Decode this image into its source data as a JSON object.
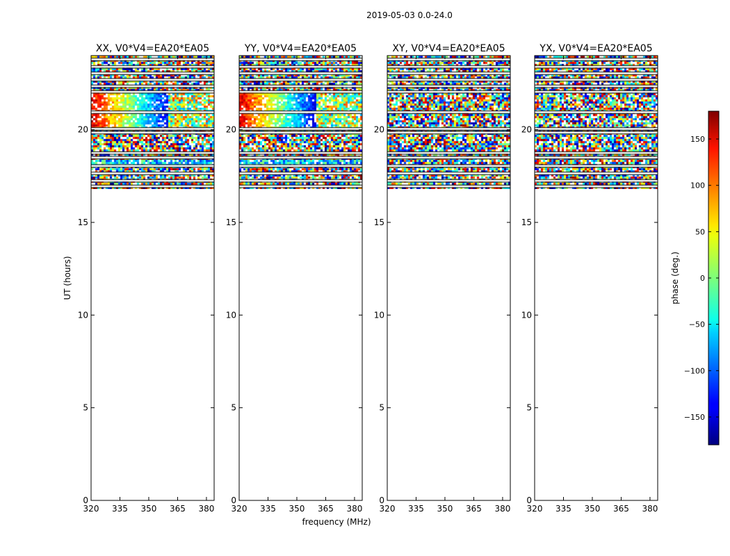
{
  "figure": {
    "suptitle": "2019-05-03 0.0-24.0",
    "xlabel": "frequency (MHz)",
    "ylabel": "UT (hours)",
    "colorbar_label": "phase (deg.)"
  },
  "chart_data": {
    "type": "heatmap",
    "suptitle": "2019-05-03 0.0-24.0",
    "xlabel": "frequency (MHz)",
    "ylabel": "UT (hours)",
    "xlim": [
      320,
      384
    ],
    "ylim": [
      0,
      24
    ],
    "xticks": [
      320,
      335,
      350,
      365,
      380
    ],
    "yticks": [
      0,
      5,
      10,
      15,
      20
    ],
    "data_ut_range": [
      16.8,
      24.0
    ],
    "colormap": "jet",
    "colorbar": {
      "label": "phase (deg.)",
      "range": [
        -180,
        180
      ],
      "ticks": [
        150,
        100,
        50,
        0,
        -50,
        -100,
        -150
      ],
      "tick_labels": [
        "150",
        "100",
        "50",
        "0",
        "−50",
        "−100",
        "−150"
      ]
    },
    "panels": [
      {
        "title": "XX, V0*V4=EA20*EA05",
        "pol": "XX",
        "structure": "phase gradient"
      },
      {
        "title": "YY, V0*V4=EA20*EA05",
        "pol": "YY",
        "structure": "phase gradient"
      },
      {
        "title": "XY, V0*V4=EA20*EA05",
        "pol": "XY",
        "structure": "noise"
      },
      {
        "title": "YX, V0*V4=EA20*EA05",
        "pol": "YX",
        "structure": "noise"
      }
    ],
    "flagged_rows_ut": [
      16.95,
      17.25,
      17.65,
      18.05,
      18.5,
      18.75,
      19.85,
      20.05,
      20.95,
      22.05,
      22.35,
      22.7,
      23.05,
      23.4,
      23.8
    ]
  }
}
